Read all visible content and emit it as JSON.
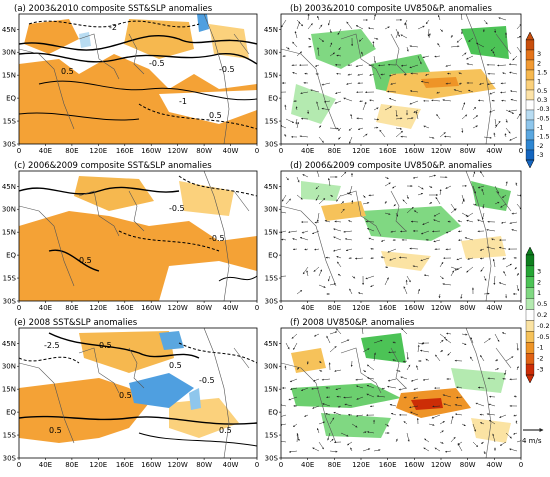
{
  "chart_data": [
    {
      "type": "map",
      "panel": "a",
      "title": "(a) 2003&2010 composite SST&SLP anomalies",
      "variables": [
        "SST anomaly (shaded)",
        "SLP anomaly (contours)"
      ],
      "contour_labels": [
        "-2",
        "0.5",
        "-0.5",
        "-0.5",
        "-1",
        "0.5"
      ],
      "xticks": [
        "0",
        "40E",
        "80E",
        "120E",
        "160E",
        "160W",
        "120W",
        "80W",
        "40W",
        "0"
      ],
      "yticks": [
        "45N",
        "30N",
        "15N",
        "EQ",
        "15S",
        "30S"
      ],
      "xlim": [
        0,
        360
      ],
      "ylim": [
        -30,
        55
      ]
    },
    {
      "type": "map",
      "panel": "b",
      "title": "(b) 2003&2010 composite UV850&P. anomalies",
      "variables": [
        "850hPa wind anomaly (vectors)",
        "precipitation anomaly (shaded)"
      ],
      "xticks": [
        "0",
        "40E",
        "80E",
        "120E",
        "160E",
        "160W",
        "120W",
        "80W",
        "40W",
        "0"
      ],
      "yticks": [
        "45N",
        "30N",
        "15N",
        "EQ",
        "15S",
        "30S"
      ],
      "xlim": [
        0,
        360
      ],
      "ylim": [
        -30,
        55
      ]
    },
    {
      "type": "map",
      "panel": "c",
      "title": "(c) 2006&2009 composite SST&SLP anomalies",
      "variables": [
        "SST anomaly (shaded)",
        "SLP anomaly (contours)"
      ],
      "contour_labels": [
        "-0.5",
        "-0.5",
        "0.5"
      ],
      "xticks": [
        "0",
        "40E",
        "80E",
        "120E",
        "160E",
        "160W",
        "120W",
        "80W",
        "40W",
        "0"
      ],
      "yticks": [
        "45N",
        "30N",
        "15N",
        "EQ",
        "15S",
        "30S"
      ],
      "xlim": [
        0,
        360
      ],
      "ylim": [
        -30,
        55
      ]
    },
    {
      "type": "map",
      "panel": "d",
      "title": "(d) 2006&2009 composite UV850&P. anomalies",
      "variables": [
        "850hPa wind anomaly (vectors)",
        "precipitation anomaly (shaded)"
      ],
      "xticks": [
        "0",
        "40E",
        "80E",
        "120E",
        "160E",
        "160W",
        "120W",
        "80W",
        "40W",
        "0"
      ],
      "yticks": [
        "45N",
        "30N",
        "15N",
        "EQ",
        "15S",
        "30S"
      ],
      "xlim": [
        0,
        360
      ],
      "ylim": [
        -30,
        55
      ]
    },
    {
      "type": "map",
      "panel": "e",
      "title": "(e) 2008 SST&SLP anomalies",
      "variables": [
        "SST anomaly (shaded)",
        "SLP anomaly (contours)"
      ],
      "contour_labels": [
        "0.5",
        "-2.5",
        "0.5",
        "-0.5",
        "0.5",
        "0.5",
        "0.5"
      ],
      "xticks": [
        "0",
        "40E",
        "80E",
        "120E",
        "160E",
        "160W",
        "120W",
        "80W",
        "40W",
        "0"
      ],
      "yticks": [
        "45N",
        "30N",
        "15N",
        "EQ",
        "15S",
        "30S"
      ],
      "xlim": [
        0,
        360
      ],
      "ylim": [
        -30,
        55
      ]
    },
    {
      "type": "map",
      "panel": "f",
      "title": "(f) 2008 UV850&P. anomalies",
      "variables": [
        "850hPa wind anomaly (vectors)",
        "precipitation anomaly (shaded)"
      ],
      "xticks": [
        "0",
        "40E",
        "80E",
        "120E",
        "160E",
        "160W",
        "120W",
        "80W",
        "40W",
        "0"
      ],
      "yticks": [
        "45N",
        "30N",
        "15N",
        "EQ",
        "15S",
        "30S"
      ],
      "xlim": [
        0,
        360
      ],
      "ylim": [
        -30,
        55
      ]
    }
  ],
  "colorbars": [
    {
      "name": "SST-colorbar",
      "levels": [
        "3",
        "2",
        "1.5",
        "1",
        "0.5",
        "0.3",
        "-0.3",
        "-0.5",
        "-1",
        "-1.5",
        "-2",
        "-3"
      ],
      "colors": [
        "#c84e0c",
        "#e4741a",
        "#f19a33",
        "#f6b84f",
        "#fbd17c",
        "#fde3a8",
        "#ffffff",
        "#b8dcf2",
        "#8ec6ec",
        "#5aa7e0",
        "#2e86d2",
        "#1465bf"
      ]
    },
    {
      "name": "precip-colorbar",
      "levels": [
        "3",
        "2",
        "1",
        "0.5",
        "0.2",
        "-0.2",
        "-0.5",
        "-1",
        "-2",
        "-3"
      ],
      "colors": [
        "#0f7f1f",
        "#25a535",
        "#4cc356",
        "#80d882",
        "#b4eab0",
        "#ffffff",
        "#fbe3a3",
        "#f6c25a",
        "#ee9427",
        "#e06214",
        "#cc2d06"
      ]
    }
  ],
  "reference_vector": {
    "label": "4 m/s"
  },
  "colors": {
    "warm_sst": "#f4a236",
    "cold_sst": "#4f9fe0",
    "wet": "#6ccf6f",
    "dry": "#f4b640"
  }
}
